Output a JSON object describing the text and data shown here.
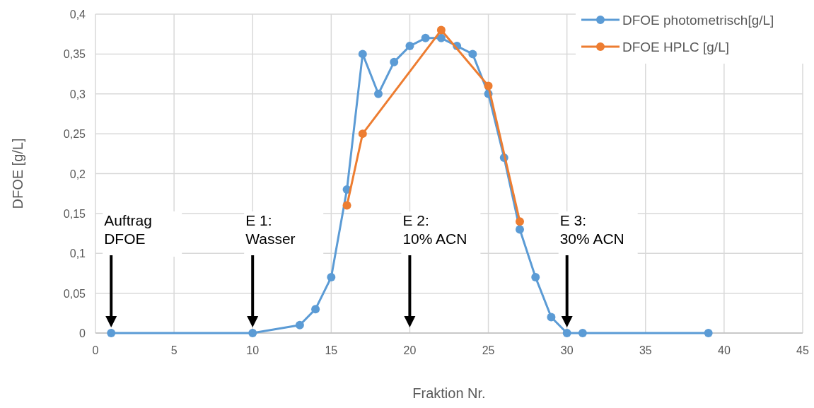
{
  "chart_data": {
    "type": "line",
    "xlabel": "Fraktion Nr.",
    "ylabel": "DFOE [g/L]",
    "xlim": [
      0,
      45
    ],
    "xticks": [
      0,
      5,
      10,
      15,
      20,
      25,
      30,
      35,
      40,
      45
    ],
    "ylim": [
      0,
      0.4
    ],
    "yticks": [
      0,
      {
        "value": 0.05,
        "label": "0,05"
      },
      {
        "value": 0.1,
        "label": "0,1"
      },
      {
        "value": 0.15,
        "label": "0,15"
      },
      {
        "value": 0.2,
        "label": "0,2"
      },
      {
        "value": 0.25,
        "label": "0,25"
      },
      {
        "value": 0.3,
        "label": "0,3"
      },
      {
        "value": 0.35,
        "label": "0,35"
      },
      {
        "value": 0.4,
        "label": "0,4"
      }
    ],
    "grid": true,
    "legend": "top right",
    "marker": "circle",
    "line_style": "solid",
    "series": [
      {
        "name": "DFOE photometrisch[g/L]",
        "color": "#5b9bd5",
        "x": [
          1,
          10,
          13,
          14,
          15,
          16,
          17,
          18,
          19,
          20,
          21,
          22,
          23,
          24,
          25,
          26,
          27,
          28,
          29,
          30,
          31,
          39
        ],
        "values": [
          0,
          0,
          0.01,
          0.03,
          0.07,
          0.18,
          0.35,
          0.3,
          0.34,
          0.36,
          0.37,
          0.37,
          0.36,
          0.35,
          0.3,
          0.22,
          0.13,
          0.07,
          0.02,
          0,
          0,
          0
        ]
      },
      {
        "name": "DFOE HPLC [g/L]",
        "color": "#ed7d31",
        "x": [
          16,
          17,
          22,
          25,
          27
        ],
        "values": [
          0.16,
          0.25,
          0.38,
          0.31,
          0.14
        ]
      }
    ],
    "annotations": [
      "Auftrag\nDFOE",
      "E 1:\nWasser",
      "E 2:\n10% ACN",
      "E 3:\n30% ACN"
    ]
  }
}
